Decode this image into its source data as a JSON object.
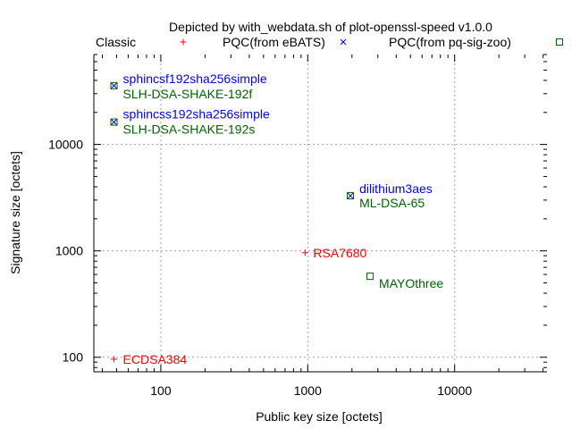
{
  "chart_data": {
    "type": "scatter",
    "title": "Depicted by with_webdata.sh of plot-openssl-speed v1.0.0",
    "xlabel": "Public key size [octets]",
    "ylabel": "Signature size [octets]",
    "xscale": "log",
    "yscale": "log",
    "xlim": [
      35,
      42500
    ],
    "ylim": [
      73,
      70000
    ],
    "xticks": [
      {
        "v": 100,
        "label": "100"
      },
      {
        "v": 1000,
        "label": "1000"
      },
      {
        "v": 10000,
        "label": "10000"
      }
    ],
    "yticks": [
      {
        "v": 100,
        "label": "100"
      },
      {
        "v": 1000,
        "label": "1000"
      },
      {
        "v": 10000,
        "label": "10000"
      }
    ],
    "grid": true,
    "legend_placement": "top",
    "series": [
      {
        "name": "Classic",
        "marker": "plus",
        "color": "#ff0000",
        "points": [
          {
            "x": 48,
            "y": 96,
            "label": "ECDSA384"
          },
          {
            "x": 960,
            "y": 960,
            "label": "RSA7680"
          }
        ]
      },
      {
        "name": "PQC(from eBATS)",
        "marker": "cross",
        "color": "#0000ff",
        "points": [
          {
            "x": 48,
            "y": 35664,
            "label": "sphincsf192sha256simple"
          },
          {
            "x": 48,
            "y": 16224,
            "label": "sphincss192sha256simple"
          },
          {
            "x": 1952,
            "y": 3293,
            "label": "dilithium3aes"
          }
        ]
      },
      {
        "name": "PQC(from pq-sig-zoo)",
        "marker": "box",
        "color": "#006400",
        "points": [
          {
            "x": 48,
            "y": 35664,
            "label": "SLH-DSA-SHAKE-192f"
          },
          {
            "x": 48,
            "y": 16224,
            "label": "SLH-DSA-SHAKE-192s"
          },
          {
            "x": 1952,
            "y": 3293,
            "label": "ML-DSA-65"
          },
          {
            "x": 2656,
            "y": 577,
            "label": "MAYOthree"
          }
        ]
      }
    ]
  }
}
